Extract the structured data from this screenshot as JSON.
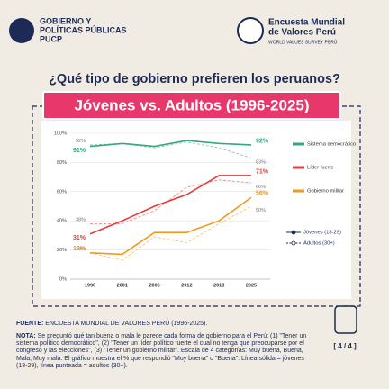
{
  "header": {
    "org_lines": [
      "GOBIERNO Y",
      "POLÍTICAS PÚBLICAS",
      "PUCP"
    ],
    "survey_lines": [
      "Encuesta Mundial",
      "de Valores Perú"
    ],
    "survey_subtitle": "WORLD VALUES SURVEY PERÚ"
  },
  "chart_data": {
    "type": "line",
    "title": "¿Qué tipo de gobierno prefieren los peruanos?",
    "subtitle": "Jóvenes vs. Adultos (1996-2025)",
    "categories": [
      "1996",
      "2001",
      "2006",
      "2012",
      "2018",
      "2025"
    ],
    "ylim": [
      0,
      100
    ],
    "yticks": [
      {
        "value": 0,
        "label": "0%"
      },
      {
        "value": 20,
        "label": "20%"
      },
      {
        "value": 40,
        "label": "40%"
      },
      {
        "value": 60,
        "label": "60%"
      },
      {
        "value": 80,
        "label": "80%"
      },
      {
        "value": 100,
        "label": "100%"
      }
    ],
    "grid": true,
    "series": [
      {
        "name": "Sistema democrático",
        "color": "#37a77f",
        "values": [
          91,
          93,
          91,
          95,
          93,
          92
        ],
        "value_labels": [
          "91%",
          null,
          null,
          null,
          null,
          "92%"
        ],
        "adult_values": [
          92,
          93,
          90,
          94,
          90,
          83
        ],
        "adult_value_labels": [
          "92%",
          null,
          null,
          null,
          null,
          "83%"
        ]
      },
      {
        "name": "Líder fuerte",
        "color": "#e53b3b",
        "values": [
          31,
          40,
          50,
          58,
          71,
          71
        ],
        "value_labels": [
          "31%",
          null,
          null,
          null,
          null,
          "71%"
        ],
        "adult_values": [
          38,
          38,
          47,
          63,
          68,
          66
        ],
        "adult_value_labels": [
          "38%",
          null,
          null,
          null,
          null,
          "66%"
        ]
      },
      {
        "name": "Gobierno militar",
        "color": "#f29a1e",
        "values": [
          18,
          17,
          32,
          32,
          40,
          56
        ],
        "value_labels": [
          "18%",
          null,
          null,
          null,
          null,
          "56%"
        ],
        "adult_values": [
          18,
          13,
          29,
          25,
          38,
          50
        ],
        "adult_value_labels": [
          "18%",
          null,
          null,
          null,
          null,
          "50%"
        ]
      }
    ],
    "line_styles": [
      {
        "name": "Jóvenes (18-29)",
        "dashed": false
      },
      {
        "name": "Adultos (30+)",
        "dashed": true
      }
    ]
  },
  "footer": {
    "source_label": "FUENTE:",
    "source": "ENCUESTA MUNDIAL DE VALORES PERÚ (1996-2025).",
    "note_label": "NOTA:",
    "note": "Se preguntó qué tan buena o mala le parece cada forma de gobierno para el Perú: (1) \"Tener un sistema político democrático\", (2) \"Tener un líder político fuerte el cual no tenga que preocuparse por el congreso y las elecciones\", (3) \"Tener un gobierno militar\". Escala de 4 categorías: Muy buena, Buena, Mala, Muy mala. El gráfico muestra el % que respondió \"Muy buena\" o \"Buena\". Línea sólida = jóvenes (18-29), línea punteada = adultos (30+).",
    "page": "[ 4 / 4 ]"
  }
}
